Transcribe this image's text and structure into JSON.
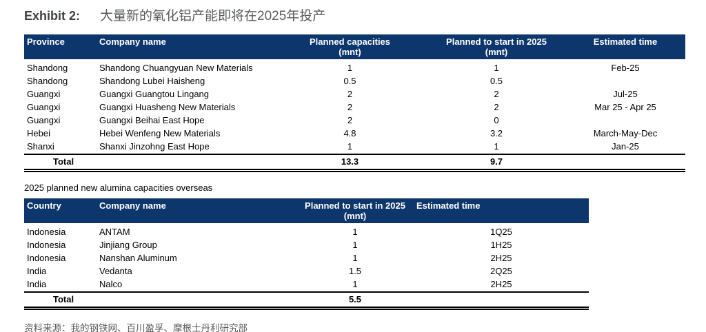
{
  "title": {
    "exhibit_label": "Exhibit 2:",
    "exhibit_text": "大量新的氧化铝产能即将在2025年投产"
  },
  "colors": {
    "header_bg": "#0d366c",
    "header_text": "#ffffff",
    "title_gray": "#5a5c5e",
    "source_gray": "#595959"
  },
  "china_table": {
    "columns": [
      {
        "label": "Province",
        "sub": ""
      },
      {
        "label": "Company name",
        "sub": ""
      },
      {
        "label": "Planned capacities",
        "sub": "(mnt)"
      },
      {
        "label": "Planned to start in 2025",
        "sub": "(mnt)"
      },
      {
        "label": "Estimated time",
        "sub": ""
      }
    ],
    "rows": [
      [
        "Shandong",
        "Shandong Chuangyuan New Materials",
        "1",
        "1",
        "Feb-25"
      ],
      [
        "Shandong",
        "Shandong Lubei Haisheng",
        "0.5",
        "0.5",
        ""
      ],
      [
        "Guangxi",
        "Guangxi Guangtou Lingang",
        "2",
        "2",
        "Jul-25"
      ],
      [
        "Guangxi",
        "Guangxi Huasheng New Materials",
        "2",
        "2",
        "Mar 25 - Apr 25"
      ],
      [
        "Guangxi",
        "Guangxi Beihai East Hope",
        "2",
        "0",
        ""
      ],
      [
        "Hebei",
        "Hebei Wenfeng New Materials",
        "4.8",
        "3.2",
        "March-May-Dec"
      ],
      [
        "Shanxi",
        "Shanxi Jinzohng East Hope",
        "1",
        "1",
        "Jan-25"
      ]
    ],
    "total": [
      "Total",
      "",
      "13.3",
      "9.7",
      ""
    ]
  },
  "overseas_table": {
    "subtitle": "2025 planned new alumina capacities overseas",
    "columns": [
      {
        "label": "Country",
        "sub": ""
      },
      {
        "label": "Company name",
        "sub": ""
      },
      {
        "label": "Planned to start in 2025",
        "sub": "(mnt)"
      },
      {
        "label": "Estimated time",
        "sub": ""
      }
    ],
    "rows": [
      [
        "Indonesia",
        "ANTAM",
        "1",
        "1Q25"
      ],
      [
        "Indonesia",
        "Jinjiang Group",
        "1",
        "1H25"
      ],
      [
        "Indonesia",
        "Nanshan Aluminum",
        "1",
        "2H25"
      ],
      [
        "India",
        "Vedanta",
        "1.5",
        "2Q25"
      ],
      [
        "India",
        "Nalco",
        "1",
        "2H25"
      ]
    ],
    "total": [
      "Total",
      "",
      "5.5",
      ""
    ]
  },
  "source": "资料来源：我的钢铁网、百川盈孚、摩根士丹利研究部"
}
